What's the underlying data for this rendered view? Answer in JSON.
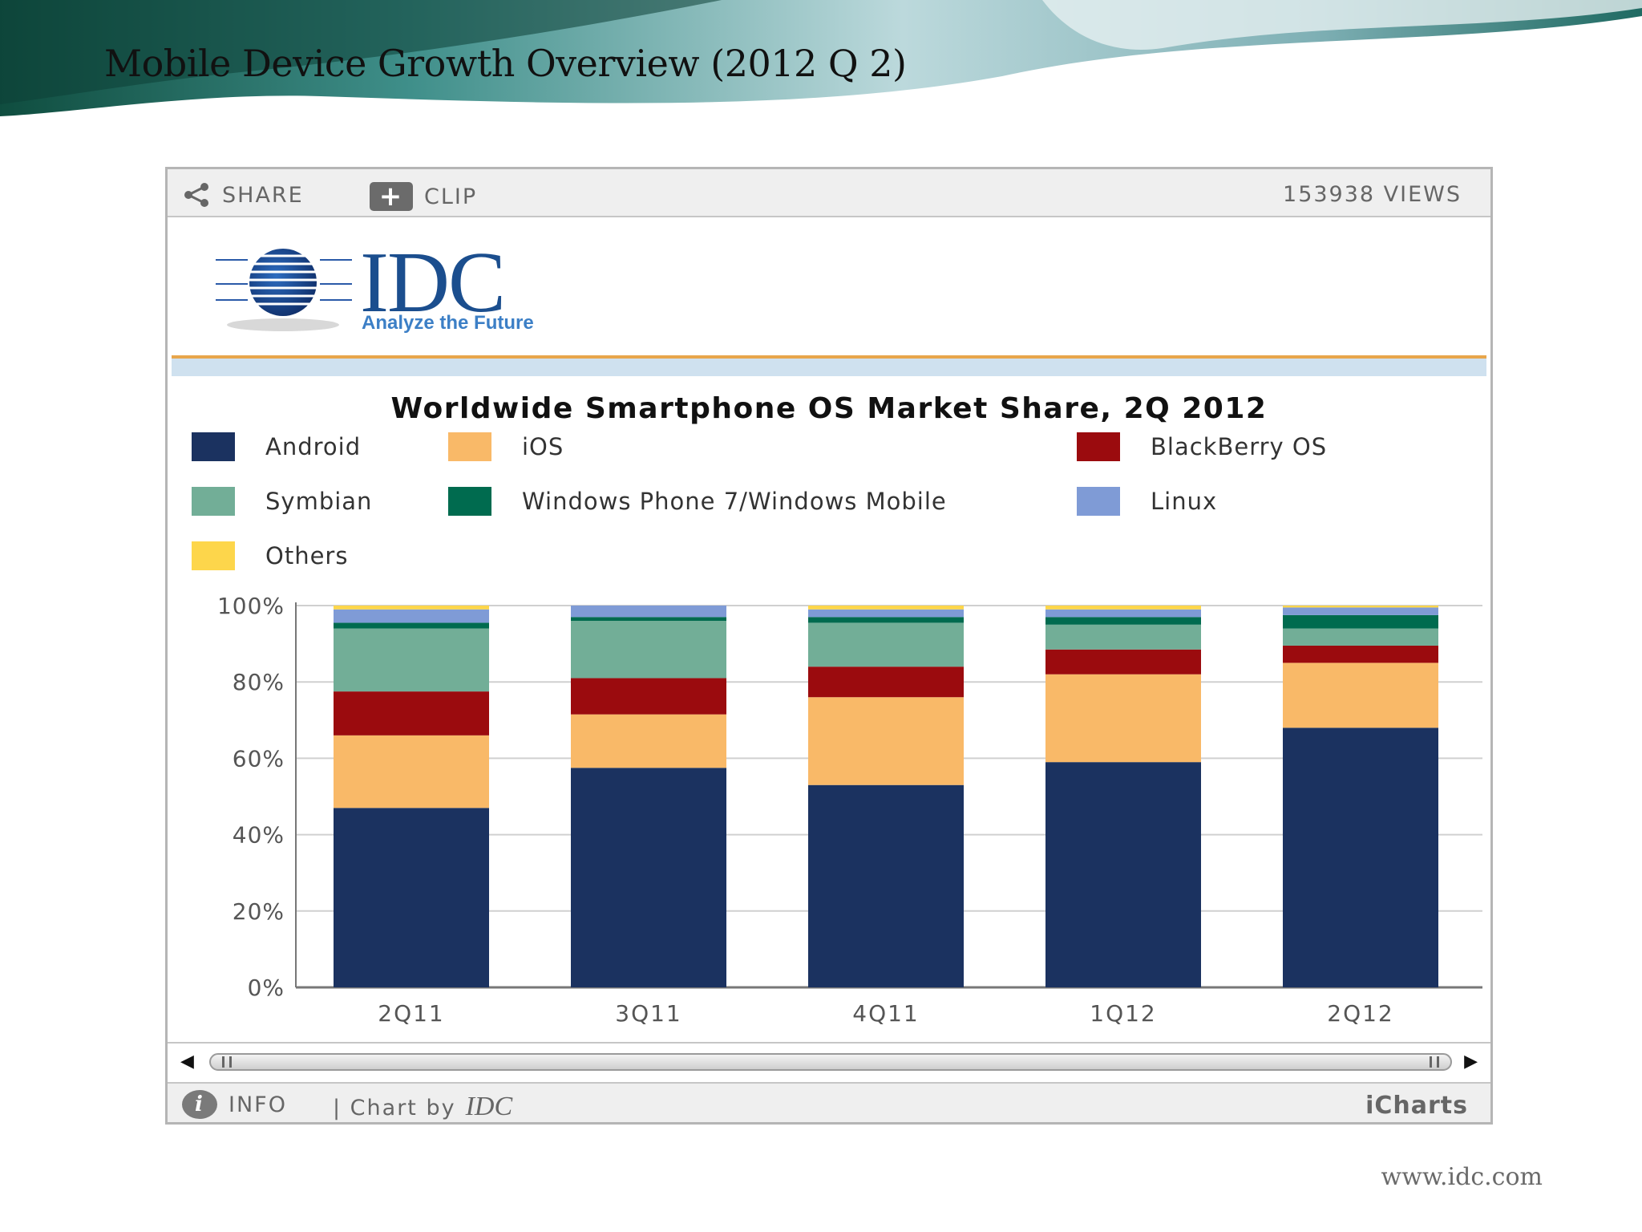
{
  "slide": {
    "title": "Mobile Device Growth Overview (2012 Q 2)",
    "footer_url": "www.idc.com"
  },
  "toolbar": {
    "share_label": "SHARE",
    "clip_label": "CLIP",
    "views_label": "153938 VIEWS",
    "info_label": "INFO",
    "chart_by": "| Chart by",
    "chart_by_brand": "IDC",
    "icharts_label": "iCharts"
  },
  "logo": {
    "name": "IDC",
    "tagline": "Analyze the Future",
    "color": "#1b4e8e"
  },
  "chart_data": {
    "type": "bar",
    "stacked": true,
    "title": "Worldwide Smartphone OS Market Share, 2Q 2012",
    "xlabel": "",
    "ylabel": "",
    "ylim": [
      0,
      100
    ],
    "yticks": [
      "0%",
      "20%",
      "40%",
      "60%",
      "80%",
      "100%"
    ],
    "categories": [
      "2Q11",
      "3Q11",
      "4Q11",
      "1Q12",
      "2Q12"
    ],
    "legend_placement": "top",
    "grid": true,
    "series": [
      {
        "name": "Android",
        "color": "#1b3260",
        "values": [
          47,
          57.5,
          53,
          59,
          68
        ]
      },
      {
        "name": "iOS",
        "color": "#f9b968",
        "values": [
          19,
          14,
          23,
          23,
          17
        ]
      },
      {
        "name": "BlackBerry OS",
        "color": "#9b0b0e",
        "values": [
          11.5,
          9.5,
          8,
          6.5,
          4.5
        ]
      },
      {
        "name": "Symbian",
        "color": "#72ae97",
        "values": [
          16.5,
          15,
          11.5,
          6.5,
          4.5
        ]
      },
      {
        "name": "Windows Phone 7/Windows Mobile",
        "color": "#006b4f",
        "values": [
          1.5,
          1,
          1.5,
          2,
          3.5
        ]
      },
      {
        "name": "Linux",
        "color": "#7f9bd6",
        "values": [
          3.5,
          3,
          2,
          2,
          2
        ]
      },
      {
        "name": "Others",
        "color": "#fdd64b",
        "values": [
          1,
          0,
          1,
          1,
          0.5
        ]
      }
    ]
  }
}
